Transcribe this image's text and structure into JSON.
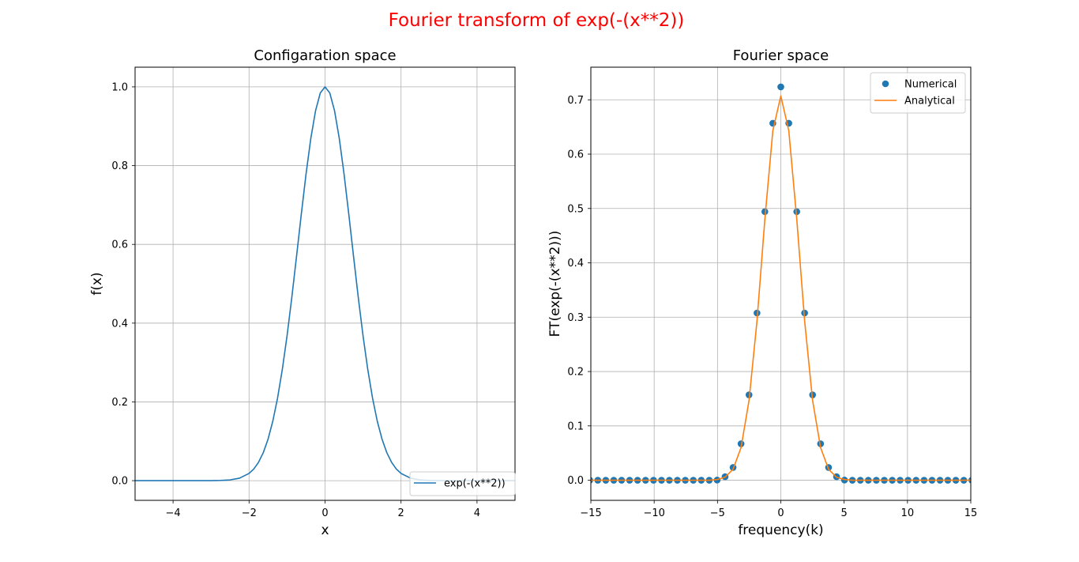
{
  "figure": {
    "suptitle": "Fourier transform of exp(-(x**2))",
    "suptitle_color": "#ff0000"
  },
  "chart_data": [
    {
      "type": "line",
      "title": "Configaration space",
      "xlabel": "x",
      "ylabel": "f(x)",
      "xlim": [
        -5,
        5
      ],
      "ylim": [
        -0.05,
        1.05
      ],
      "xticks": [
        -4,
        -2,
        0,
        2,
        4
      ],
      "xtick_labels": [
        "−4",
        "−2",
        "0",
        "2",
        "4"
      ],
      "yticks": [
        0.0,
        0.2,
        0.4,
        0.6,
        0.8,
        1.0
      ],
      "ytick_labels": [
        "0.0",
        "0.2",
        "0.4",
        "0.6",
        "0.8",
        "1.0"
      ],
      "grid": true,
      "legend_loc": "lower-right",
      "series": [
        {
          "name": "exp(-(x**2))",
          "color": "#1f77b4",
          "x": [
            -5.0,
            -4.5,
            -4.0,
            -3.5,
            -3.0,
            -2.75,
            -2.5,
            -2.25,
            -2.0,
            -1.875,
            -1.75,
            -1.625,
            -1.5,
            -1.375,
            -1.25,
            -1.125,
            -1.0,
            -0.875,
            -0.75,
            -0.625,
            -0.5,
            -0.375,
            -0.25,
            -0.125,
            0.0,
            0.125,
            0.25,
            0.375,
            0.5,
            0.625,
            0.75,
            0.875,
            1.0,
            1.125,
            1.25,
            1.375,
            1.5,
            1.625,
            1.75,
            1.875,
            2.0,
            2.25,
            2.5,
            2.75,
            3.0,
            3.5,
            4.0,
            4.5,
            5.0
          ],
          "y": [
            0.0,
            0.0,
            0.0,
            0.0,
            0.0001,
            0.0005,
            0.0019,
            0.0063,
            0.0183,
            0.0297,
            0.0468,
            0.0713,
            0.1054,
            0.151,
            0.2096,
            0.2821,
            0.3679,
            0.465,
            0.5698,
            0.6766,
            0.7788,
            0.8688,
            0.9394,
            0.9845,
            1.0,
            0.9845,
            0.9394,
            0.8688,
            0.7788,
            0.6766,
            0.5698,
            0.465,
            0.3679,
            0.2821,
            0.2096,
            0.151,
            0.1054,
            0.0713,
            0.0468,
            0.0297,
            0.0183,
            0.0063,
            0.0019,
            0.0005,
            0.0001,
            0.0,
            0.0,
            0.0,
            0.0
          ]
        }
      ]
    },
    {
      "type": "line",
      "title": "Fourier space",
      "xlabel": "frequency(k)",
      "ylabel": "FT(exp(-(x**2)))",
      "xlim": [
        -15,
        15
      ],
      "ylim": [
        -0.037,
        0.76
      ],
      "xticks": [
        -15,
        -10,
        -5,
        0,
        5,
        10,
        15
      ],
      "xtick_labels": [
        "−15",
        "−10",
        "−5",
        "0",
        "5",
        "10",
        "15"
      ],
      "yticks": [
        0.0,
        0.1,
        0.2,
        0.3,
        0.4,
        0.5,
        0.6,
        0.7
      ],
      "ytick_labels": [
        "0.0",
        "0.1",
        "0.2",
        "0.3",
        "0.4",
        "0.5",
        "0.6",
        "0.7"
      ],
      "grid": true,
      "legend_loc": "upper-right",
      "series": [
        {
          "name": "Numerical",
          "style": "markers",
          "color": "#1f77b4",
          "x": [
            -15.08,
            -14.45,
            -13.82,
            -13.19,
            -12.57,
            -11.94,
            -11.31,
            -10.68,
            -10.05,
            -9.42,
            -8.8,
            -8.17,
            -7.54,
            -6.91,
            -6.28,
            -5.65,
            -5.03,
            -4.4,
            -3.77,
            -3.14,
            -2.51,
            -1.88,
            -1.26,
            -0.63,
            0.0,
            0.63,
            1.26,
            1.88,
            2.51,
            3.14,
            3.77,
            4.4,
            5.03,
            5.65,
            6.28,
            6.91,
            7.54,
            8.17,
            8.8,
            9.42,
            10.05,
            10.68,
            11.31,
            11.94,
            12.57,
            13.19,
            13.82,
            14.45,
            15.08
          ],
          "y": [
            0.0,
            0.0,
            0.0,
            0.0,
            0.0,
            0.0,
            0.0,
            0.0,
            0.0,
            0.0,
            0.0,
            0.0,
            0.0,
            0.0,
            0.0,
            0.0,
            0.0003,
            0.0065,
            0.0235,
            0.0671,
            0.1571,
            0.3077,
            0.4942,
            0.6568,
            0.7237,
            0.6568,
            0.4942,
            0.3077,
            0.1571,
            0.0671,
            0.0235,
            0.0065,
            0.0003,
            0.0,
            0.0,
            0.0,
            0.0,
            0.0,
            0.0,
            0.0,
            0.0,
            0.0,
            0.0,
            0.0,
            0.0,
            0.0,
            0.0,
            0.0,
            0.0
          ]
        },
        {
          "name": "Analytical",
          "style": "line",
          "color": "#ff7f0e",
          "x": [
            -15.08,
            -14.45,
            -13.82,
            -13.19,
            -12.57,
            -11.94,
            -11.31,
            -10.68,
            -10.05,
            -9.42,
            -8.8,
            -8.17,
            -7.54,
            -6.91,
            -6.28,
            -5.65,
            -5.03,
            -4.4,
            -3.77,
            -3.14,
            -2.51,
            -1.88,
            -1.26,
            -0.63,
            0.0,
            0.63,
            1.26,
            1.88,
            2.51,
            3.14,
            3.77,
            4.4,
            5.03,
            5.65,
            6.28,
            6.91,
            7.54,
            8.17,
            8.8,
            9.42,
            10.05,
            10.68,
            11.31,
            11.94,
            12.57,
            13.19,
            13.82,
            14.45,
            15.08
          ],
          "y": [
            0.0,
            0.0,
            0.0,
            0.0,
            0.0,
            0.0,
            0.0,
            0.0,
            0.0,
            0.0,
            0.0,
            0.0,
            0.0,
            0.0,
            0.0,
            0.0,
            0.0013,
            0.0056,
            0.0202,
            0.0601,
            0.1467,
            0.2932,
            0.4803,
            0.6431,
            0.7071,
            0.6431,
            0.4803,
            0.2932,
            0.1467,
            0.0601,
            0.0202,
            0.0056,
            0.0013,
            0.0,
            0.0,
            0.0,
            0.0,
            0.0,
            0.0,
            0.0,
            0.0,
            0.0,
            0.0,
            0.0,
            0.0,
            0.0,
            0.0,
            0.0,
            0.0
          ]
        }
      ]
    }
  ]
}
